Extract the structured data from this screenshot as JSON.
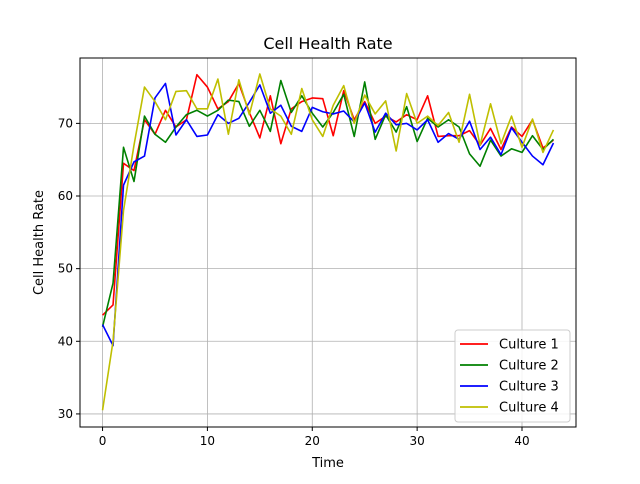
{
  "chart_data": {
    "type": "line",
    "title": "Cell Health Rate",
    "xlabel": "Time",
    "ylabel": "Cell Health Rate",
    "xlim": [
      -2.15,
      45.15
    ],
    "ylim": [
      28.2,
      79.0
    ],
    "xticks": [
      0,
      10,
      20,
      30,
      40
    ],
    "yticks": [
      30,
      40,
      50,
      60,
      70
    ],
    "grid": true,
    "legend_position": "lower right",
    "x": [
      0,
      1,
      2,
      3,
      4,
      5,
      6,
      7,
      8,
      9,
      10,
      11,
      12,
      13,
      14,
      15,
      16,
      17,
      18,
      19,
      20,
      21,
      22,
      23,
      24,
      25,
      26,
      27,
      28,
      29,
      30,
      31,
      32,
      33,
      34,
      35,
      36,
      37,
      38,
      39,
      40,
      41,
      42,
      43
    ],
    "series": [
      {
        "name": "Culture 1",
        "color": "#ff0000",
        "values": [
          43.6,
          45.0,
          64.5,
          63.5,
          70.5,
          68.5,
          71.8,
          69.5,
          70.5,
          76.7,
          75.0,
          72.0,
          73.0,
          75.5,
          71.5,
          68.0,
          73.8,
          67.2,
          72.0,
          73.0,
          73.5,
          73.4,
          68.3,
          74.5,
          70.5,
          73.0,
          70.0,
          71.0,
          70.2,
          71.2,
          70.5,
          73.8,
          68.2,
          68.3,
          68.3,
          69.0,
          67.0,
          69.3,
          66.4,
          69.5,
          68.2,
          70.5,
          66.6,
          67.7
        ]
      },
      {
        "name": "Culture 2",
        "color": "#008000",
        "values": [
          42.0,
          48.0,
          66.7,
          62.0,
          71.0,
          68.5,
          67.4,
          69.5,
          71.2,
          71.8,
          71.0,
          71.8,
          73.2,
          73.0,
          69.6,
          71.8,
          68.9,
          75.9,
          71.5,
          73.8,
          71.4,
          69.5,
          71.5,
          74.0,
          68.2,
          75.7,
          67.8,
          71.2,
          68.8,
          72.3,
          67.5,
          70.7,
          69.5,
          70.5,
          69.5,
          65.8,
          64.1,
          67.7,
          65.5,
          66.5,
          66.0,
          68.3,
          66.4,
          67.8
        ]
      },
      {
        "name": "Culture 3",
        "color": "#0000ff",
        "values": [
          42.3,
          39.4,
          61.5,
          64.7,
          65.5,
          73.5,
          75.5,
          68.4,
          70.5,
          68.2,
          68.4,
          71.2,
          70.0,
          70.7,
          72.9,
          75.3,
          71.4,
          72.5,
          69.6,
          68.9,
          72.2,
          71.6,
          71.3,
          71.7,
          70.2,
          72.8,
          68.8,
          71.4,
          69.8,
          70.0,
          69.1,
          70.5,
          67.4,
          68.6,
          67.8,
          70.3,
          66.4,
          68.1,
          65.7,
          69.4,
          67.4,
          65.5,
          64.3,
          67.3
        ]
      },
      {
        "name": "Culture 4",
        "color": "#bfbf00",
        "values": [
          30.5,
          40.0,
          58.0,
          67.0,
          75.0,
          73.0,
          70.5,
          74.4,
          74.5,
          72.0,
          72.0,
          76.1,
          68.5,
          76.0,
          71.2,
          76.8,
          72.0,
          71.0,
          68.5,
          74.8,
          70.5,
          68.2,
          72.5,
          75.2,
          70.0,
          73.9,
          71.3,
          73.1,
          66.2,
          74.1,
          70.0,
          71.0,
          69.7,
          71.5,
          67.4,
          74.0,
          67.0,
          72.7,
          67.2,
          71.0,
          66.7,
          70.6,
          66.0,
          69.1
        ]
      }
    ]
  }
}
